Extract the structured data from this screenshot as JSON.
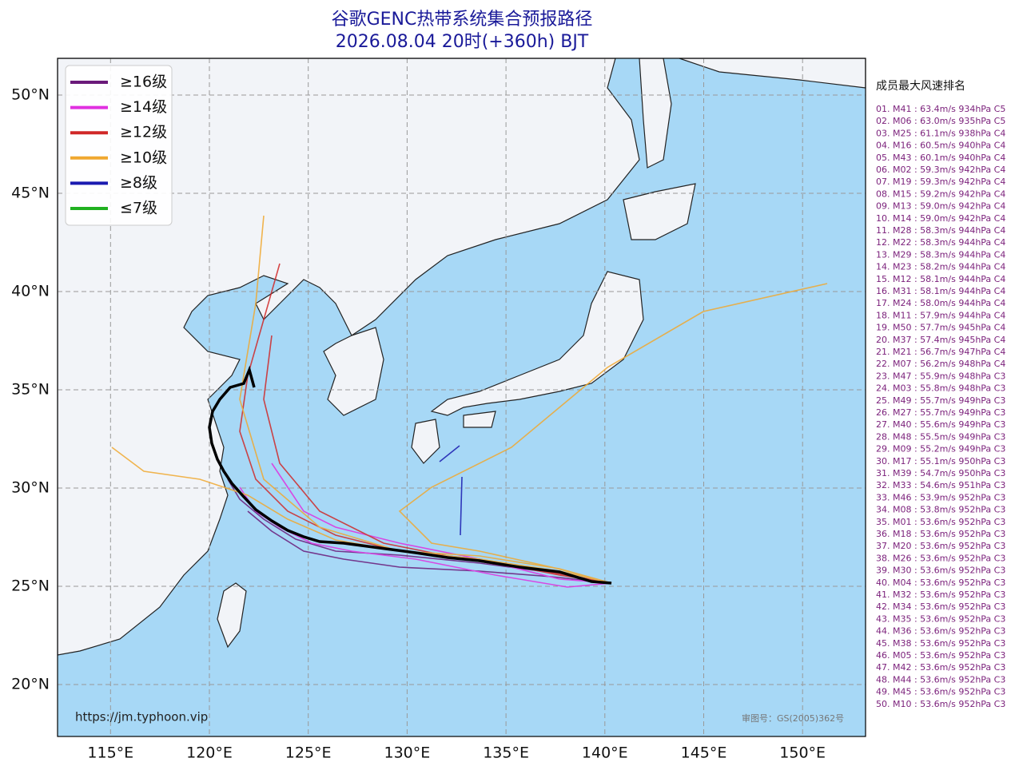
{
  "map": {
    "title": [
      "谷歌GENC热带系统集合预报路径",
      "2026.08.04 20时(+360h) BJT"
    ],
    "lon_ticks": [
      {
        "value": 115,
        "label": "115°E"
      },
      {
        "value": 120,
        "label": "120°E"
      },
      {
        "value": 125,
        "label": "125°E"
      },
      {
        "value": 130,
        "label": "130°E"
      },
      {
        "value": 135,
        "label": "135°E"
      },
      {
        "value": 140,
        "label": "140°E"
      },
      {
        "value": 145,
        "label": "145°E"
      },
      {
        "value": 150,
        "label": "150°E"
      }
    ],
    "lat_ticks": [
      {
        "value": 20,
        "label": "20°N"
      },
      {
        "value": 25,
        "label": "25°N"
      },
      {
        "value": 30,
        "label": "30°N"
      },
      {
        "value": 35,
        "label": "35°N"
      },
      {
        "value": 40,
        "label": "40°N"
      },
      {
        "value": 45,
        "label": "45°N"
      },
      {
        "value": 50,
        "label": "50°N"
      }
    ],
    "legend": [
      {
        "name": "≥16级",
        "color": "#6a1a7a"
      },
      {
        "name": "≥14级",
        "color": "#e030e0"
      },
      {
        "name": "≥12级",
        "color": "#d02828"
      },
      {
        "name": "≥10级",
        "color": "#f0a830"
      },
      {
        "name": "≥8级",
        "color": "#1a1ab0"
      },
      {
        "name": "≤7级",
        "color": "#20b020"
      }
    ],
    "ranking_title": "成员最大风速排名",
    "ranking": [
      "01. M41 : 63.4m/s 934hPa C5",
      "02. M06 : 63.0m/s 935hPa C5",
      "03. M25 : 61.1m/s 938hPa C4",
      "04. M16 : 60.5m/s 940hPa C4",
      "05. M43 : 60.1m/s 940hPa C4",
      "06. M02 : 59.3m/s 942hPa C4",
      "07. M19 : 59.3m/s 942hPa C4",
      "08. M15 : 59.2m/s 942hPa C4",
      "09. M13 : 59.0m/s 942hPa C4",
      "10. M14 : 59.0m/s 942hPa C4",
      "11. M28 : 58.3m/s 944hPa C4",
      "12. M22 : 58.3m/s 944hPa C4",
      "13. M29 : 58.3m/s 944hPa C4",
      "14. M23 : 58.2m/s 944hPa C4",
      "15. M12 : 58.1m/s 944hPa C4",
      "16. M31 : 58.1m/s 944hPa C4",
      "17. M24 : 58.0m/s 944hPa C4",
      "18. M11 : 57.9m/s 944hPa C4",
      "19. M50 : 57.7m/s 945hPa C4",
      "20. M37 : 57.4m/s 945hPa C4",
      "21. M21 : 56.7m/s 947hPa C4",
      "22. M07 : 56.2m/s 948hPa C4",
      "23. M47 : 55.9m/s 948hPa C3",
      "24. M03 : 55.8m/s 948hPa C3",
      "25. M49 : 55.7m/s 949hPa C3",
      "26. M27 : 55.7m/s 949hPa C3",
      "27. M40 : 55.6m/s 949hPa C3",
      "28. M48 : 55.5m/s 949hPa C3",
      "29. M09 : 55.2m/s 949hPa C3",
      "30. M17 : 55.1m/s 950hPa C3",
      "31. M39 : 54.7m/s 950hPa C3",
      "32. M33 : 54.6m/s 951hPa C3",
      "33. M46 : 53.9m/s 952hPa C3",
      "34. M08 : 53.8m/s 952hPa C3",
      "35. M01 : 53.6m/s 952hPa C3",
      "36. M18 : 53.6m/s 952hPa C3",
      "37. M20 : 53.6m/s 952hPa C3",
      "38. M26 : 53.6m/s 952hPa C3",
      "39. M30 : 53.6m/s 952hPa C3",
      "40. M04 : 53.6m/s 952hPa C3",
      "41. M32 : 53.6m/s 952hPa C3",
      "42. M34 : 53.6m/s 952hPa C3",
      "43. M35 : 53.6m/s 952hPa C3",
      "44. M36 : 53.6m/s 952hPa C3",
      "45. M38 : 53.6m/s 952hPa C3",
      "46. M05 : 53.6m/s 952hPa C3",
      "47. M42 : 53.6m/s 952hPa C3",
      "48. M44 : 53.6m/s 952hPa C3",
      "49. M45 : 53.6m/s 952hPa C3",
      "50. M10 : 53.6m/s 952hPa C3"
    ],
    "source_url": "https://jm.typhoon.vip",
    "approval_no": "审图号：GS(2005)362号"
  }
}
